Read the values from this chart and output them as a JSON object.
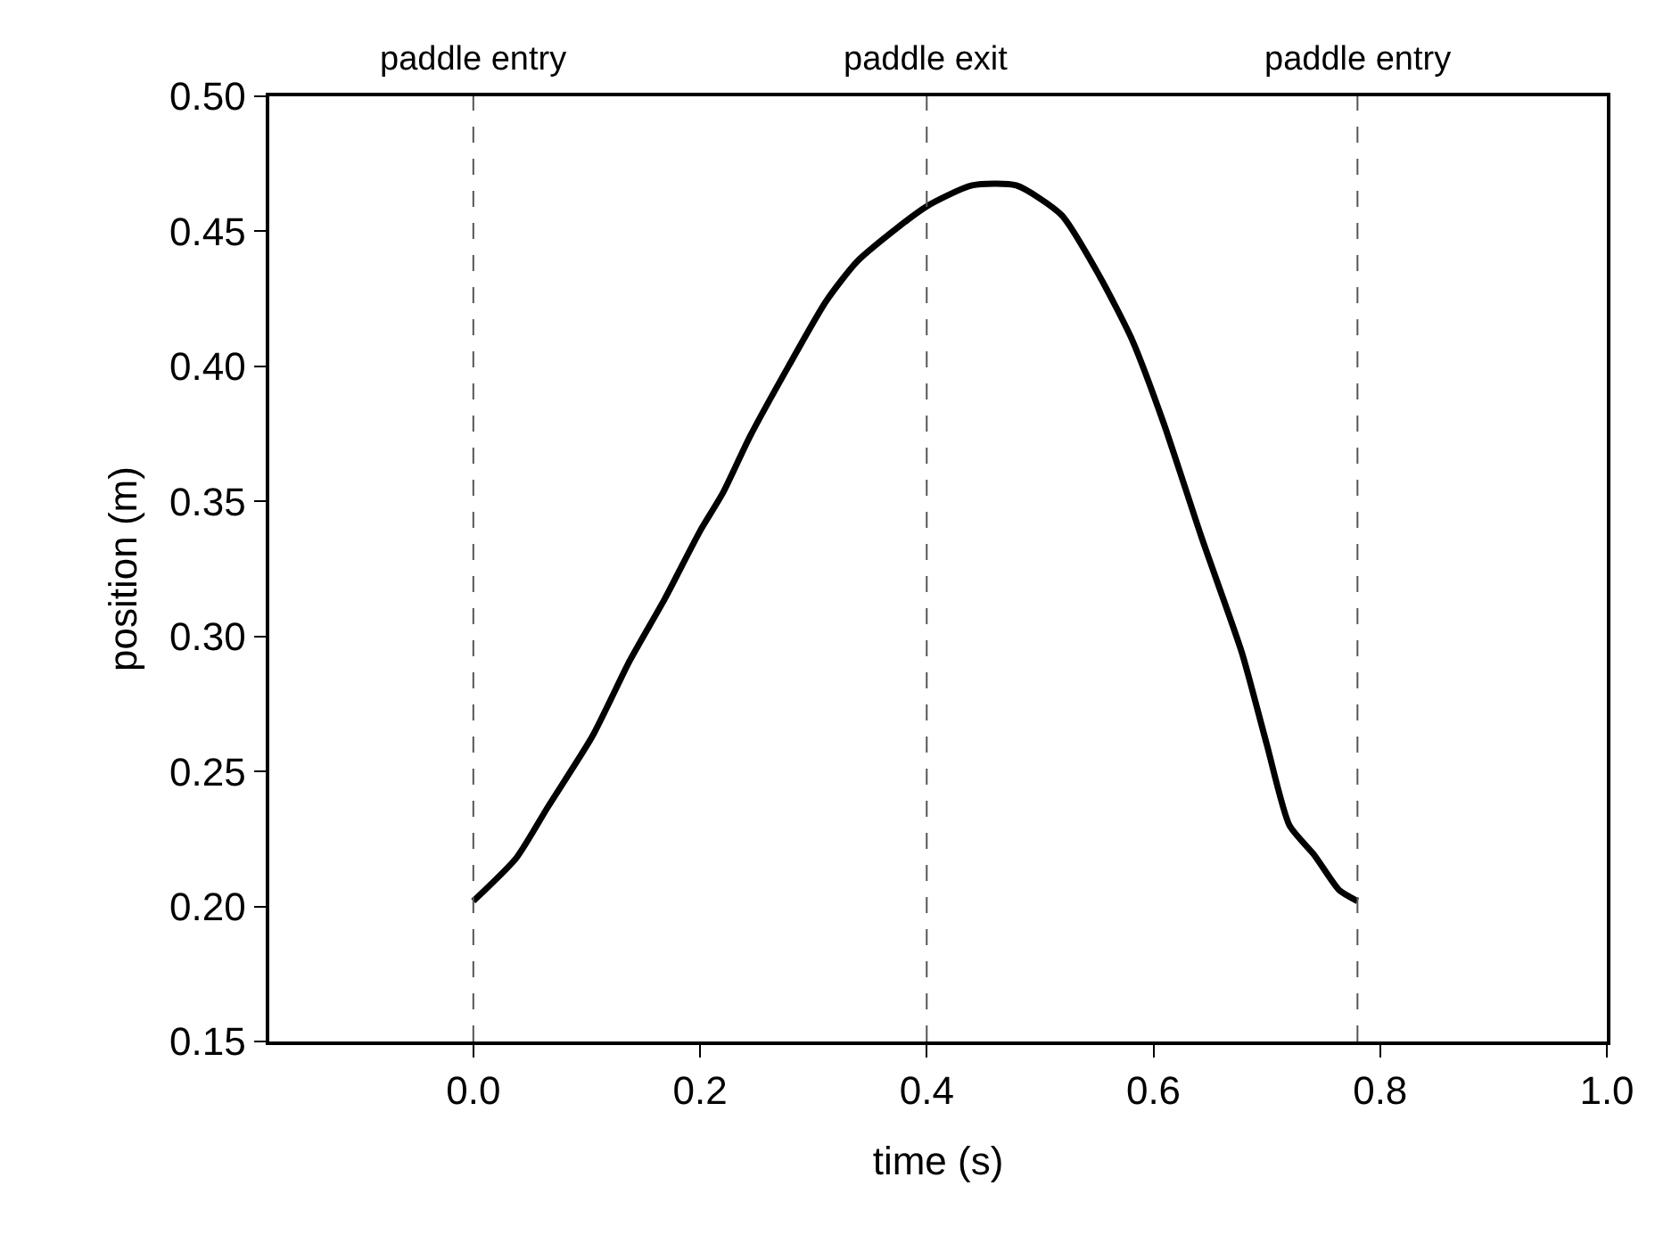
{
  "chart_data": {
    "type": "line",
    "xlabel": "time (s)",
    "ylabel": "position (m)",
    "xlim": [
      -0.18,
      1.0
    ],
    "xticks": [
      {
        "value": 0,
        "label": "0.0"
      },
      0.2,
      0.4,
      0.6,
      0.8,
      {
        "value": 1.0,
        "label": "1.0"
      }
    ],
    "ylim": [
      0.15,
      0.5
    ],
    "yticks": [
      0.15,
      {
        "value": 0.2,
        "label": "0.20"
      },
      0.25,
      {
        "value": 0.3,
        "label": "0.30"
      },
      0.35,
      {
        "value": 0.4,
        "label": "0.40"
      },
      0.45,
      {
        "value": 0.5,
        "label": "0.50"
      }
    ],
    "marker": "none",
    "line_style": "solid",
    "series": [
      {
        "color": "#000000",
        "x": [
          0.0,
          0.038,
          0.066,
          0.105,
          0.138,
          0.169,
          0.2,
          0.22,
          0.244,
          0.278,
          0.311,
          0.339,
          0.399,
          0.44,
          0.479,
          0.519,
          0.553,
          0.581,
          0.609,
          0.643,
          0.678,
          0.7,
          0.72,
          0.742,
          0.764,
          0.78
        ],
        "values": [
          0.202,
          0.218,
          0.237,
          0.263,
          0.291,
          0.314,
          0.339,
          0.353,
          0.374,
          0.4,
          0.424,
          0.439,
          0.459,
          0.467,
          0.467,
          0.456,
          0.433,
          0.41,
          0.379,
          0.336,
          0.294,
          0.26,
          0.23,
          0.219,
          0.206,
          0.202
        ]
      }
    ],
    "ref_lines": [
      {
        "axis": "x",
        "value": 0.0,
        "label": "paddle entry",
        "color": "#555555",
        "line_style": "dashed"
      },
      {
        "axis": "x",
        "value": 0.4,
        "label": "paddle exit",
        "color": "#555555",
        "line_style": "dashed"
      },
      {
        "axis": "x",
        "value": 0.78,
        "label": "paddle entry",
        "color": "#555555",
        "line_style": "dashed"
      }
    ]
  }
}
